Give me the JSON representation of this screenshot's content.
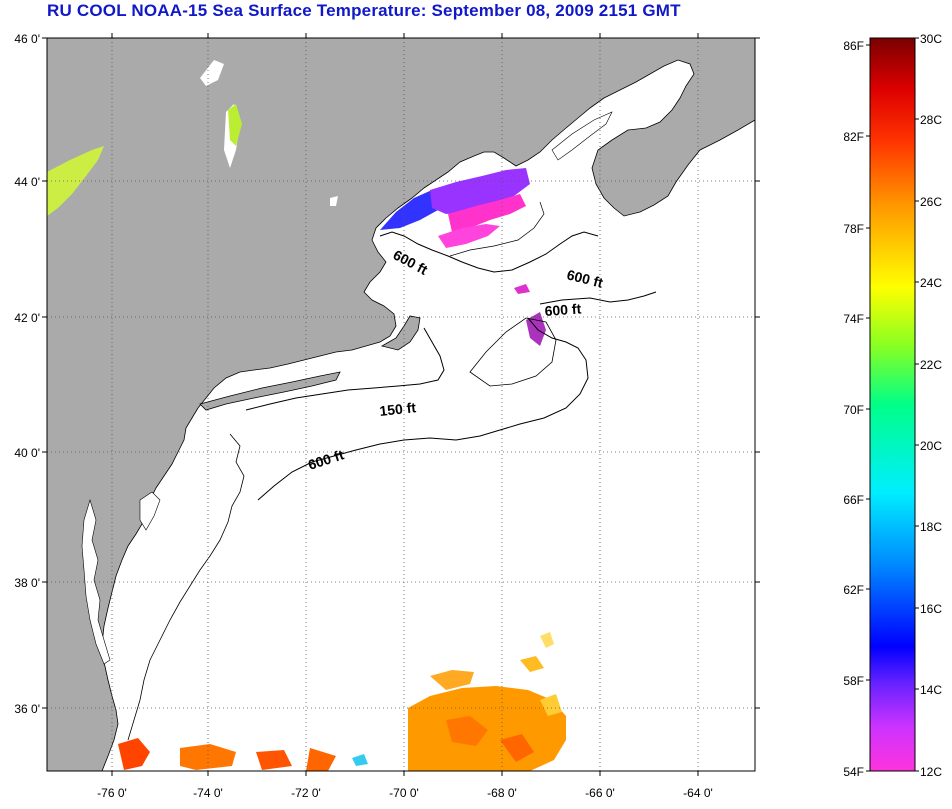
{
  "title": "RU COOL  NOAA-15  Sea Surface Temperature:  September 08, 2009 2151 GMT",
  "map": {
    "lat_labels": [
      "46 0'",
      "44 0'",
      "42 0'",
      "40 0'",
      "38 0'",
      "36 0'"
    ],
    "lon_labels": [
      "-76 0'",
      "-74 0'",
      "-72 0'",
      "-70 0'",
      "-68 0'",
      "-66 0'",
      "-64 0'"
    ],
    "contour_labels": [
      "600 ft",
      "600 ft",
      "600 ft",
      "150 ft",
      "600 ft"
    ],
    "colors": {
      "land": "#aaaaaa",
      "ocean": "#ffffff",
      "frame": "#000000"
    }
  },
  "colorbar": {
    "fahrenheit_labels": [
      "86F",
      "82F",
      "78F",
      "74F",
      "70F",
      "66F",
      "62F",
      "58F",
      "54F"
    ],
    "celsius_labels": [
      "30C",
      "28C",
      "26C",
      "24C",
      "22C",
      "20C",
      "18C",
      "16C",
      "14C",
      "12C"
    ],
    "colors": [
      "#ff33cc",
      "#9933ff",
      "#0000ff",
      "#00aaff",
      "#00ffff",
      "#00ff88",
      "#88ff00",
      "#ffff00",
      "#ffaa00",
      "#ff5500",
      "#ff0000",
      "#800000"
    ]
  }
}
